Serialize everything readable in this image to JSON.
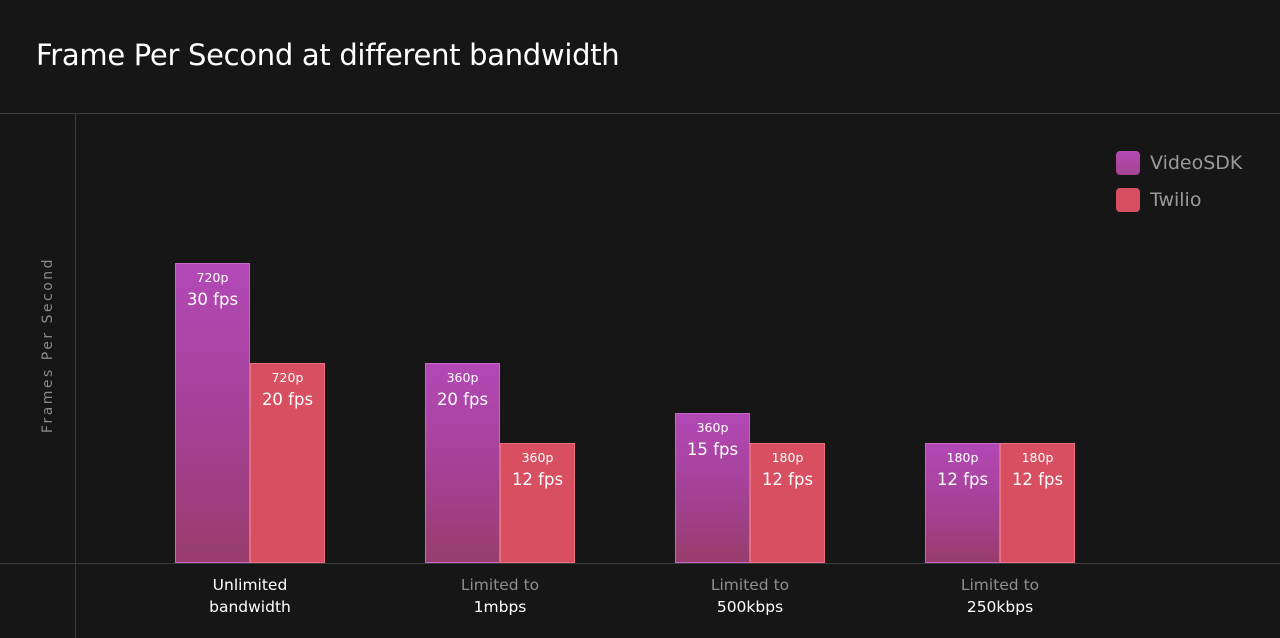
{
  "chart_data": {
    "type": "bar",
    "title": "Frame Per Second at different bandwidth",
    "ylabel": "Frames Per Second",
    "xlabel": "",
    "ylim": [
      0,
      30
    ],
    "grid": false,
    "legend_position": "top-right",
    "categories": [
      {
        "line1": "Unlimited",
        "line2": "bandwidth"
      },
      {
        "line1": "Limited to",
        "line2": "1mbps"
      },
      {
        "line1": "Limited to",
        "line2": "500kbps"
      },
      {
        "line1": "Limited to",
        "line2": "250kbps"
      }
    ],
    "series": [
      {
        "name": "VideoSDK",
        "color": "#b348b6",
        "values": [
          30,
          20,
          15,
          12
        ],
        "resolutions": [
          "720p",
          "360p",
          "360p",
          "180p"
        ],
        "labels": [
          "30 fps",
          "20 fps",
          "15 fps",
          "12 fps"
        ]
      },
      {
        "name": "Twilio",
        "color": "#d84f62",
        "values": [
          20,
          12,
          12,
          12
        ],
        "resolutions": [
          "720p",
          "360p",
          "180p",
          "180p"
        ],
        "labels": [
          "20 fps",
          "12 fps",
          "12 fps",
          "12 fps"
        ]
      }
    ]
  }
}
